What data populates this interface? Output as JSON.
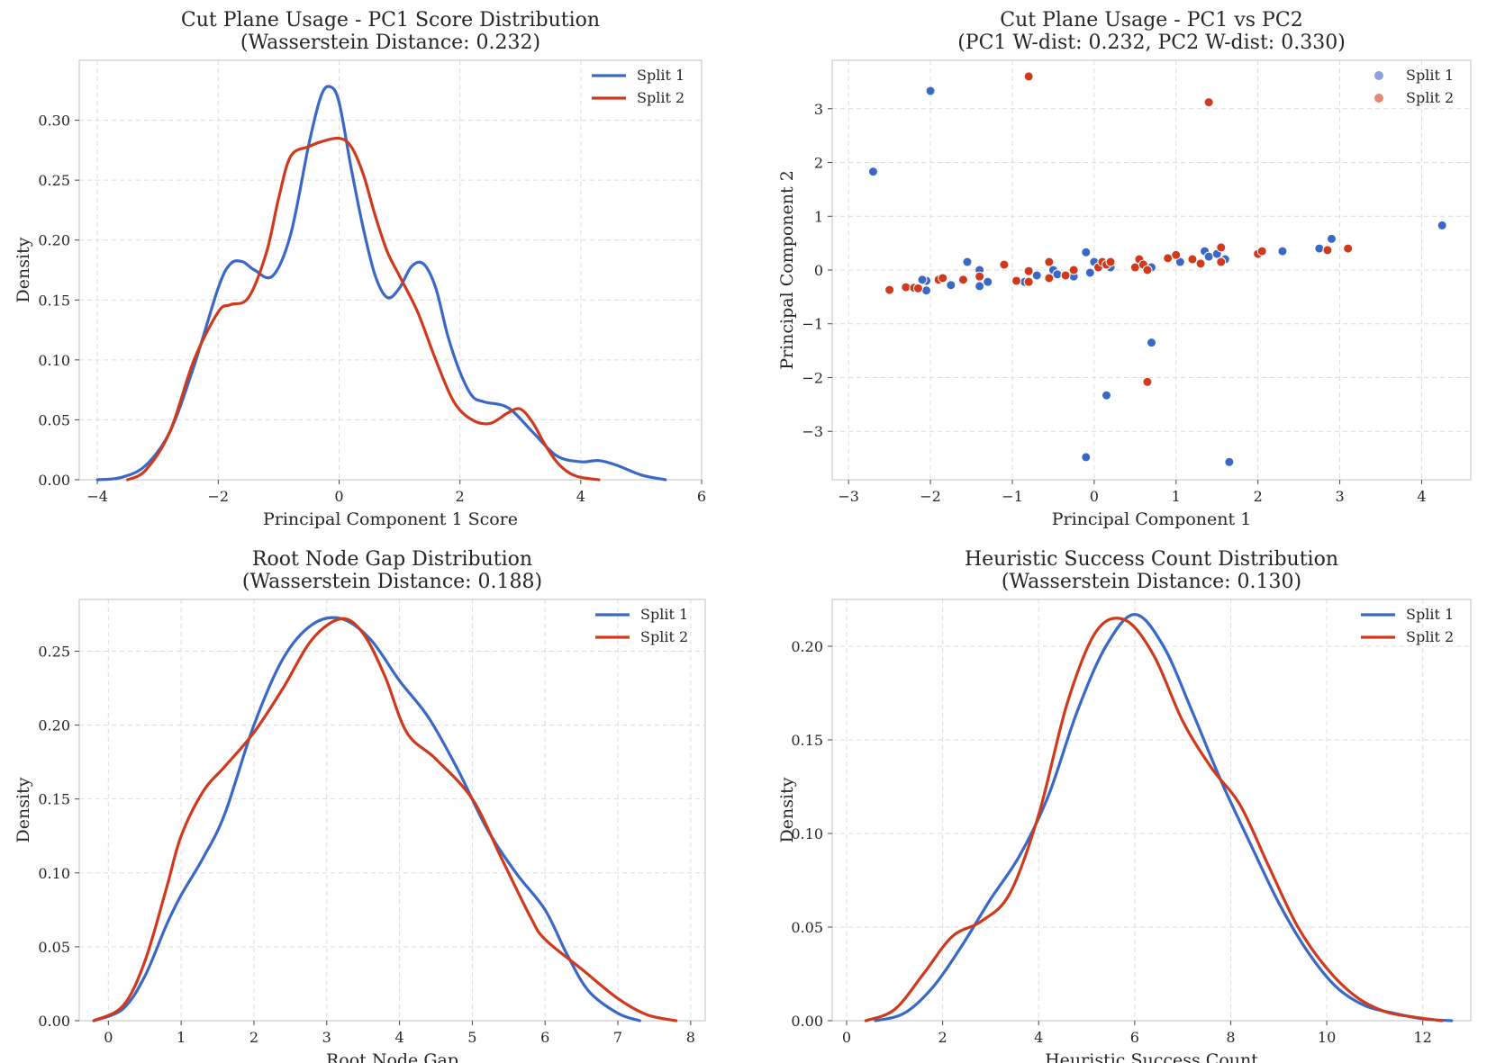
{
  "colors": {
    "split1": "#3a68c6",
    "split2": "#cf3a1c"
  },
  "chart_data": [
    {
      "id": "pc1",
      "type": "line",
      "title": "Cut Plane Usage - PC1 Score Distribution\n(Wasserstein Distance: 0.232)",
      "title_lines": [
        "Cut Plane Usage - PC1 Score Distribution",
        "(Wasserstein Distance: 0.232)"
      ],
      "xlabel": "Principal Component 1 Score",
      "ylabel": "Density",
      "xlim": [
        -4.3,
        6.0
      ],
      "ylim": [
        0,
        0.35
      ],
      "xticks": [
        -4,
        -2,
        0,
        2,
        4,
        6
      ],
      "xtick_labels": [
        "−4",
        "−2",
        "0",
        "2",
        "4",
        "6"
      ],
      "yticks": [
        0,
        0.05,
        0.1,
        0.15,
        0.2,
        0.25,
        0.3
      ],
      "ytick_labels": [
        "0.00",
        "0.05",
        "0.10",
        "0.15",
        "0.20",
        "0.25",
        "0.30"
      ],
      "legend_loc": "top-right",
      "series": [
        {
          "name": "Split 1",
          "x": [
            -4.0,
            -3.6,
            -3.2,
            -2.8,
            -2.4,
            -2.0,
            -1.8,
            -1.6,
            -1.4,
            -1.1,
            -0.8,
            -0.5,
            -0.3,
            -0.15,
            0.0,
            0.2,
            0.4,
            0.6,
            0.8,
            1.0,
            1.2,
            1.4,
            1.6,
            1.8,
            2.0,
            2.2,
            2.4,
            2.8,
            3.2,
            3.6,
            4.0,
            4.3,
            4.6,
            5.0,
            5.4
          ],
          "values": [
            0.0,
            0.002,
            0.012,
            0.04,
            0.095,
            0.16,
            0.18,
            0.182,
            0.175,
            0.17,
            0.205,
            0.28,
            0.32,
            0.328,
            0.315,
            0.26,
            0.21,
            0.17,
            0.152,
            0.16,
            0.178,
            0.18,
            0.16,
            0.12,
            0.09,
            0.07,
            0.065,
            0.06,
            0.04,
            0.02,
            0.015,
            0.016,
            0.012,
            0.004,
            0.0
          ]
        },
        {
          "name": "Split 2",
          "x": [
            -3.5,
            -3.2,
            -2.8,
            -2.4,
            -2.0,
            -1.8,
            -1.5,
            -1.2,
            -1.0,
            -0.8,
            -0.5,
            -0.3,
            0.0,
            0.2,
            0.4,
            0.6,
            0.8,
            1.0,
            1.3,
            1.6,
            1.9,
            2.2,
            2.5,
            2.8,
            3.0,
            3.2,
            3.4,
            3.6,
            3.8,
            4.0,
            4.3
          ],
          "values": [
            0.0,
            0.008,
            0.04,
            0.1,
            0.14,
            0.146,
            0.152,
            0.19,
            0.235,
            0.27,
            0.278,
            0.282,
            0.285,
            0.278,
            0.255,
            0.22,
            0.19,
            0.17,
            0.14,
            0.1,
            0.065,
            0.05,
            0.047,
            0.056,
            0.059,
            0.048,
            0.03,
            0.015,
            0.006,
            0.002,
            0.0
          ]
        }
      ]
    },
    {
      "id": "scatter",
      "type": "scatter",
      "title_lines": [
        "Cut Plane Usage - PC1 vs PC2",
        "(PC1 W-dist: 0.232, PC2 W-dist: 0.330)"
      ],
      "xlabel": "Principal Component 1",
      "ylabel": "Principal Component 2",
      "xlim": [
        -3.2,
        4.6
      ],
      "ylim": [
        -3.9,
        3.9
      ],
      "xticks": [
        -3,
        -2,
        -1,
        0,
        1,
        2,
        3,
        4
      ],
      "xtick_labels": [
        "−3",
        "−2",
        "−1",
        "0",
        "1",
        "2",
        "3",
        "4"
      ],
      "yticks": [
        -3,
        -2,
        -1,
        0,
        1,
        2,
        3
      ],
      "ytick_labels": [
        "−3",
        "−2",
        "−1",
        "0",
        "1",
        "2",
        "3"
      ],
      "legend_loc": "top-right",
      "series": [
        {
          "name": "Split 1",
          "points": [
            [
              -2.7,
              1.83
            ],
            [
              -2.0,
              3.33
            ],
            [
              -2.05,
              -0.2
            ],
            [
              -2.1,
              -0.18
            ],
            [
              -2.05,
              -0.38
            ],
            [
              -1.75,
              -0.28
            ],
            [
              -1.55,
              0.15
            ],
            [
              -1.4,
              0.0
            ],
            [
              -1.4,
              -0.3
            ],
            [
              -1.3,
              -0.22
            ],
            [
              -0.85,
              -0.22
            ],
            [
              -0.7,
              -0.1
            ],
            [
              -0.5,
              0.0
            ],
            [
              -0.45,
              -0.08
            ],
            [
              -0.35,
              -0.1
            ],
            [
              -0.25,
              -0.12
            ],
            [
              -0.1,
              0.33
            ],
            [
              -0.05,
              -0.05
            ],
            [
              0.0,
              0.15
            ],
            [
              0.1,
              0.1
            ],
            [
              0.2,
              0.05
            ],
            [
              0.55,
              0.1
            ],
            [
              0.7,
              0.05
            ],
            [
              0.7,
              -1.35
            ],
            [
              0.15,
              -2.33
            ],
            [
              -0.1,
              -3.48
            ],
            [
              1.05,
              0.15
            ],
            [
              1.35,
              0.35
            ],
            [
              1.4,
              0.25
            ],
            [
              1.5,
              0.3
            ],
            [
              1.6,
              0.2
            ],
            [
              1.65,
              -3.57
            ],
            [
              2.3,
              0.35
            ],
            [
              2.75,
              0.4
            ],
            [
              2.9,
              0.58
            ],
            [
              4.25,
              0.83
            ]
          ]
        },
        {
          "name": "Split 2",
          "points": [
            [
              -2.5,
              -0.37
            ],
            [
              -2.3,
              -0.32
            ],
            [
              -2.2,
              -0.33
            ],
            [
              -2.15,
              -0.34
            ],
            [
              -1.9,
              -0.18
            ],
            [
              -1.85,
              -0.15
            ],
            [
              -1.6,
              -0.18
            ],
            [
              -1.4,
              -0.12
            ],
            [
              -1.1,
              0.1
            ],
            [
              -0.95,
              -0.2
            ],
            [
              -0.8,
              -0.22
            ],
            [
              -0.8,
              -0.02
            ],
            [
              -0.8,
              3.6
            ],
            [
              -0.55,
              0.15
            ],
            [
              -0.55,
              -0.15
            ],
            [
              -0.35,
              -0.1
            ],
            [
              -0.25,
              0.0
            ],
            [
              0.05,
              0.05
            ],
            [
              0.1,
              0.15
            ],
            [
              0.15,
              0.1
            ],
            [
              0.2,
              0.15
            ],
            [
              0.5,
              0.05
            ],
            [
              0.55,
              0.2
            ],
            [
              0.6,
              0.1
            ],
            [
              0.65,
              0.0
            ],
            [
              0.65,
              -2.08
            ],
            [
              0.9,
              0.22
            ],
            [
              1.0,
              0.28
            ],
            [
              1.2,
              0.2
            ],
            [
              1.3,
              0.12
            ],
            [
              1.4,
              3.12
            ],
            [
              1.55,
              0.15
            ],
            [
              1.55,
              0.42
            ],
            [
              2.0,
              0.3
            ],
            [
              2.05,
              0.35
            ],
            [
              2.85,
              0.37
            ],
            [
              3.1,
              0.4
            ]
          ]
        }
      ]
    },
    {
      "id": "rootgap",
      "type": "line",
      "title_lines": [
        "Root Node Gap Distribution",
        "(Wasserstein Distance: 0.188)"
      ],
      "xlabel": "Root Node Gap",
      "ylabel": "Density",
      "xlim": [
        -0.4,
        8.2
      ],
      "ylim": [
        0,
        0.285
      ],
      "xticks": [
        0,
        1,
        2,
        3,
        4,
        5,
        6,
        7,
        8
      ],
      "xtick_labels": [
        "0",
        "1",
        "2",
        "3",
        "4",
        "5",
        "6",
        "7",
        "8"
      ],
      "yticks": [
        0,
        0.05,
        0.1,
        0.15,
        0.2,
        0.25
      ],
      "ytick_labels": [
        "0.00",
        "0.05",
        "0.10",
        "0.15",
        "0.20",
        "0.25"
      ],
      "legend_loc": "top-right",
      "series": [
        {
          "name": "Split 1",
          "x": [
            -0.2,
            0.2,
            0.5,
            0.8,
            1.0,
            1.3,
            1.6,
            2.0,
            2.4,
            2.8,
            3.2,
            3.6,
            4.0,
            4.4,
            4.8,
            5.2,
            5.6,
            6.0,
            6.3,
            6.6,
            7.0,
            7.3
          ],
          "values": [
            0.0,
            0.008,
            0.03,
            0.065,
            0.085,
            0.11,
            0.14,
            0.2,
            0.245,
            0.268,
            0.272,
            0.258,
            0.23,
            0.205,
            0.17,
            0.13,
            0.1,
            0.075,
            0.045,
            0.02,
            0.005,
            0.0
          ]
        },
        {
          "name": "Split 2",
          "x": [
            -0.2,
            0.2,
            0.5,
            0.8,
            1.0,
            1.3,
            1.6,
            2.0,
            2.4,
            2.8,
            3.2,
            3.5,
            3.8,
            4.1,
            4.5,
            5.0,
            5.4,
            5.8,
            6.0,
            6.5,
            7.0,
            7.4,
            7.8
          ],
          "values": [
            0.0,
            0.01,
            0.04,
            0.09,
            0.125,
            0.155,
            0.172,
            0.195,
            0.225,
            0.258,
            0.272,
            0.262,
            0.233,
            0.195,
            0.177,
            0.15,
            0.11,
            0.07,
            0.055,
            0.035,
            0.015,
            0.004,
            0.0
          ]
        }
      ]
    },
    {
      "id": "heuristic",
      "type": "line",
      "title_lines": [
        "Heuristic Success Count Distribution",
        "(Wasserstein Distance: 0.130)"
      ],
      "xlabel": "Heuristic Success Count",
      "ylabel": "Density",
      "xlim": [
        -0.3,
        13.0
      ],
      "ylim": [
        0,
        0.225
      ],
      "xticks": [
        0,
        2,
        4,
        6,
        8,
        10,
        12
      ],
      "xtick_labels": [
        "0",
        "2",
        "4",
        "6",
        "8",
        "10",
        "12"
      ],
      "yticks": [
        0,
        0.05,
        0.1,
        0.15,
        0.2
      ],
      "ytick_labels": [
        "0.00",
        "0.05",
        "0.10",
        "0.15",
        "0.20"
      ],
      "legend_loc": "top-right",
      "series": [
        {
          "name": "Split 1",
          "x": [
            0.6,
            1.2,
            1.8,
            2.4,
            3.0,
            3.6,
            4.2,
            4.8,
            5.4,
            6.0,
            6.6,
            7.2,
            7.8,
            8.4,
            9.0,
            9.6,
            10.2,
            10.8,
            11.4,
            12.0,
            12.6
          ],
          "values": [
            0.0,
            0.004,
            0.018,
            0.04,
            0.065,
            0.088,
            0.12,
            0.165,
            0.2,
            0.217,
            0.2,
            0.165,
            0.128,
            0.095,
            0.063,
            0.037,
            0.018,
            0.008,
            0.004,
            0.001,
            0.0
          ]
        },
        {
          "name": "Split 2",
          "x": [
            0.4,
            1.0,
            1.6,
            2.2,
            2.8,
            3.4,
            4.0,
            4.6,
            5.2,
            5.8,
            6.4,
            7.0,
            7.6,
            8.2,
            8.8,
            9.4,
            10.0,
            10.6,
            11.2,
            11.8,
            12.4
          ],
          "values": [
            0.0,
            0.006,
            0.025,
            0.045,
            0.053,
            0.068,
            0.11,
            0.17,
            0.208,
            0.214,
            0.195,
            0.16,
            0.135,
            0.115,
            0.082,
            0.05,
            0.028,
            0.013,
            0.005,
            0.002,
            0.0
          ]
        }
      ]
    }
  ]
}
